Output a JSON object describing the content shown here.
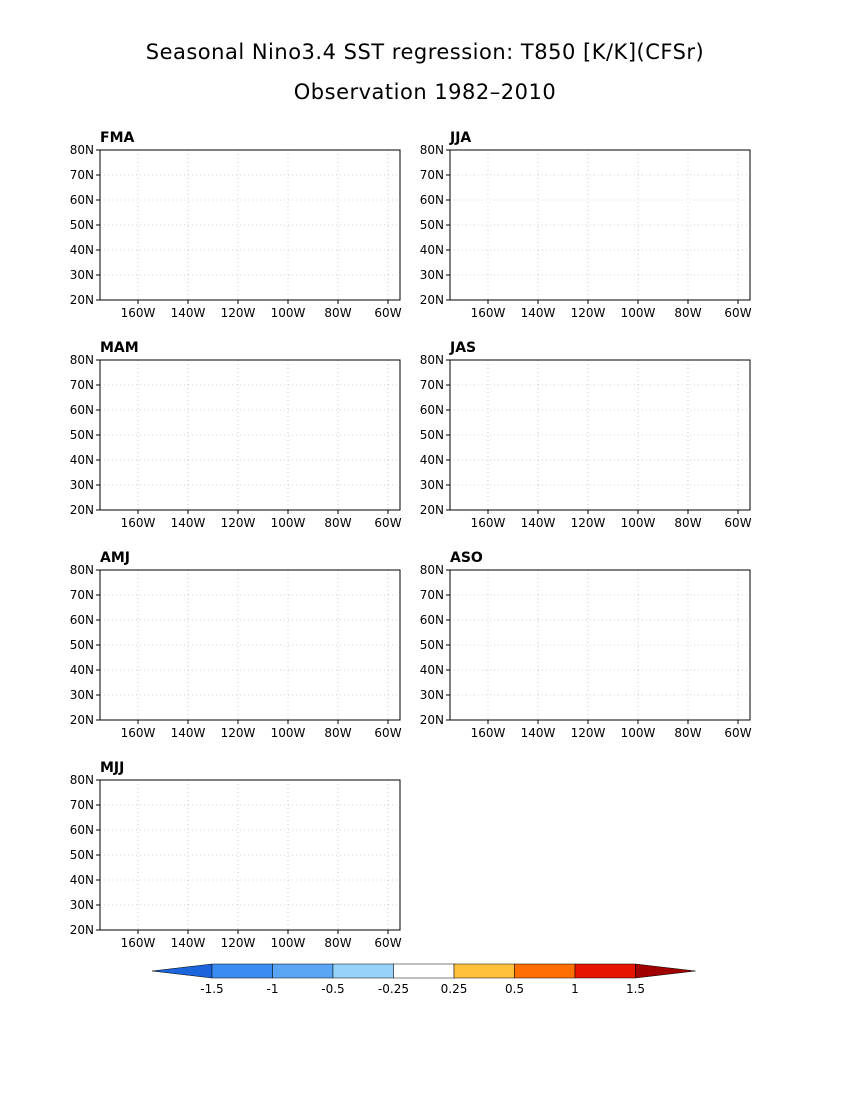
{
  "title": {
    "line1": "Seasonal Nino3.4 SST regression: T850 [K/K](CFSr)",
    "line2": "Observation 1982–2010"
  },
  "lat_labels": [
    "80N",
    "70N",
    "60N",
    "50N",
    "40N",
    "30N",
    "20N"
  ],
  "lon_labels": [
    "160W",
    "140W",
    "120W",
    "100W",
    "80W",
    "60W"
  ],
  "panels": [
    {
      "label": "FMA"
    },
    {
      "label": "JJA"
    },
    {
      "label": "MAM"
    },
    {
      "label": "JAS"
    },
    {
      "label": "AMJ"
    },
    {
      "label": "ASO"
    },
    {
      "label": "MJJ"
    }
  ],
  "colorbar": {
    "labels": [
      "-1.5",
      "-1",
      "-0.5",
      "-0.25",
      "0.25",
      "0.5",
      "1",
      "1.5"
    ],
    "colors": [
      "#1c64dc",
      "#3a8cf0",
      "#5aa6f5",
      "#96d2fa",
      "#ffffff",
      "#ffc03c",
      "#ff6e00",
      "#e61400",
      "#a00000"
    ]
  }
}
